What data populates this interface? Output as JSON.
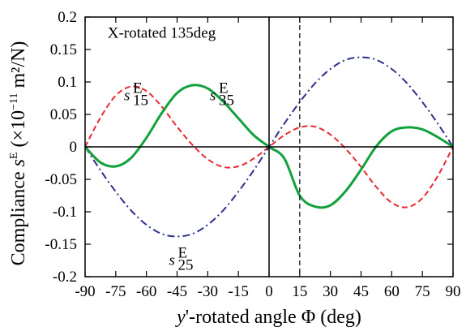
{
  "chart_data": {
    "type": "line",
    "title": "",
    "annotation": "X-rotated 135deg",
    "xlabel": {
      "prefix": "y",
      "suffix": "'-rotated angle Φ  (deg)"
    },
    "ylabel": {
      "prefix": "Compliance  ",
      "symbol": "s",
      "symbol_sup": "E",
      "unit_prefix": " (×10",
      "unit_exp": "−11",
      "unit_suffix": " m²/N)"
    },
    "xlim": [
      -90,
      90
    ],
    "ylim": [
      -0.2,
      0.2
    ],
    "xticks": [
      -90,
      -75,
      -60,
      -45,
      -30,
      -15,
      0,
      15,
      30,
      45,
      60,
      75,
      90
    ],
    "yticks": [
      -0.2,
      -0.15,
      -0.1,
      -0.05,
      0,
      0.05,
      0.1,
      0.15,
      0.2
    ],
    "ytick_labels": [
      "-0.2",
      "-0.15",
      "-0.1",
      "-0.05",
      "0",
      "0.05",
      "0.1",
      "0.15",
      "0.2"
    ],
    "vertical_reference_lines": [
      {
        "x": 0,
        "style": "solid"
      },
      {
        "x": 15,
        "style": "dashed"
      }
    ],
    "grid": false,
    "legend": "none",
    "series": [
      {
        "label_base": "s",
        "label_sup": "E",
        "label_sub": "15",
        "label_anchor": [
          -67,
          0.072
        ],
        "color": "#e8292f",
        "dash": "dashed",
        "x": [
          -90,
          -82.5,
          -75,
          -67.5,
          -60,
          -52.5,
          -45,
          -37.5,
          -30,
          -22.5,
          -15,
          -7.5,
          0,
          7.5,
          15,
          22.5,
          30,
          37.5,
          45,
          52.5,
          60,
          67.5,
          75,
          82.5,
          90
        ],
        "y": [
          0,
          0.045,
          0.079,
          0.093,
          0.086,
          0.062,
          0.031,
          0.003,
          -0.019,
          -0.031,
          -0.03,
          -0.018,
          0,
          0.018,
          0.03,
          0.031,
          0.019,
          -0.003,
          -0.031,
          -0.062,
          -0.086,
          -0.093,
          -0.079,
          -0.045,
          0
        ]
      },
      {
        "label_base": "s",
        "label_sup": "E",
        "label_sub": "25",
        "label_anchor": [
          -45,
          -0.182
        ],
        "color": "#2e2f8f",
        "dash": "dashdot",
        "x": [
          -90,
          -82.5,
          -75,
          -67.5,
          -60,
          -52.5,
          -45,
          -37.5,
          -30,
          -22.5,
          -15,
          -7.5,
          0,
          7.5,
          15,
          22.5,
          30,
          37.5,
          45,
          52.5,
          60,
          67.5,
          75,
          82.5,
          90
        ],
        "y": [
          0,
          -0.036,
          -0.069,
          -0.098,
          -0.12,
          -0.134,
          -0.138,
          -0.134,
          -0.12,
          -0.098,
          -0.069,
          -0.036,
          0,
          0.036,
          0.069,
          0.098,
          0.12,
          0.134,
          0.138,
          0.134,
          0.12,
          0.098,
          0.069,
          0.036,
          0
        ]
      },
      {
        "label_base": "s",
        "label_sup": "E",
        "label_sub": "35",
        "label_anchor": [
          -25,
          0.072
        ],
        "color": "#13a13d",
        "dash": "solid",
        "x": [
          -90,
          -82.5,
          -75,
          -67.5,
          -60,
          -52.5,
          -45,
          -37.5,
          -30,
          -22.5,
          -15,
          -7.5,
          0,
          7.5,
          15,
          22.5,
          30,
          37.5,
          45,
          52.5,
          60,
          67.5,
          75,
          82.5,
          90
        ],
        "y": [
          0,
          -0.024,
          -0.03,
          -0.017,
          0.014,
          0.052,
          0.083,
          0.095,
          0.09,
          0.07,
          0.044,
          0.018,
          0,
          -0.018,
          -0.075,
          -0.092,
          -0.09,
          -0.068,
          -0.035,
          0.001,
          0.024,
          0.03,
          0.027,
          0.015,
          0
        ]
      }
    ]
  }
}
